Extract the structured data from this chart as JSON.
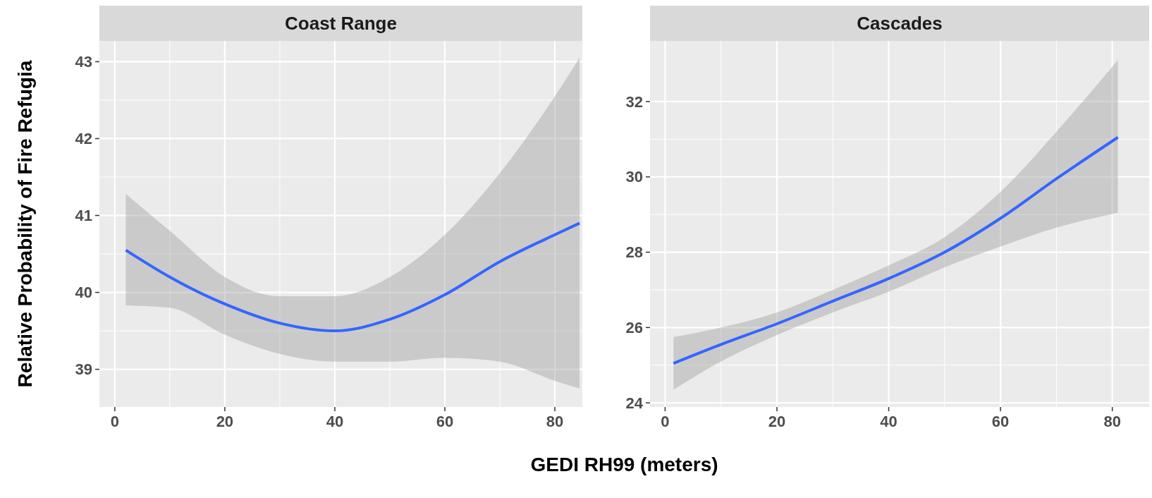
{
  "chart_data": [
    {
      "type": "line",
      "title": "Coast Range",
      "ylabel": "Relative Probability of Fire Refugia",
      "xlabel": "GEDI RH99 (meters)",
      "xlim": [
        -2.8,
        85
      ],
      "ylim": [
        38.51,
        43.27
      ],
      "xticks": [
        0,
        20,
        40,
        60,
        80
      ],
      "yticks": [
        39,
        40,
        41,
        42,
        43
      ],
      "grid": true,
      "series": [
        {
          "color": "#3366ff",
          "x": [
            2,
            10,
            20,
            30,
            40,
            50,
            60,
            70,
            80,
            84.5
          ],
          "values": [
            40.55,
            40.2,
            39.85,
            39.6,
            39.5,
            39.65,
            39.97,
            40.4,
            40.75,
            40.9
          ],
          "lower": [
            39.83,
            39.8,
            39.45,
            39.2,
            39.1,
            39.1,
            39.15,
            39.1,
            38.85,
            38.75
          ],
          "upper": [
            41.28,
            40.8,
            40.2,
            39.95,
            39.95,
            40.2,
            40.75,
            41.55,
            42.55,
            43.05
          ]
        }
      ]
    },
    {
      "type": "line",
      "title": "Cascades",
      "xlim": [
        -2.7,
        86.6
      ],
      "ylim": [
        23.89,
        33.61
      ],
      "xticks": [
        0,
        20,
        40,
        60,
        80
      ],
      "yticks": [
        24,
        26,
        28,
        30,
        32
      ],
      "grid": true,
      "series": [
        {
          "color": "#3366ff",
          "x": [
            1.5,
            10,
            20,
            30,
            40,
            50,
            60,
            70,
            81
          ],
          "values": [
            25.05,
            25.55,
            26.1,
            26.7,
            27.3,
            28.0,
            28.9,
            29.95,
            31.05
          ],
          "lower": [
            24.35,
            25.1,
            25.8,
            26.4,
            26.95,
            27.6,
            28.15,
            28.65,
            29.05
          ],
          "upper": [
            25.75,
            26.0,
            26.4,
            27.0,
            27.65,
            28.4,
            29.6,
            31.2,
            33.1
          ]
        }
      ]
    }
  ]
}
